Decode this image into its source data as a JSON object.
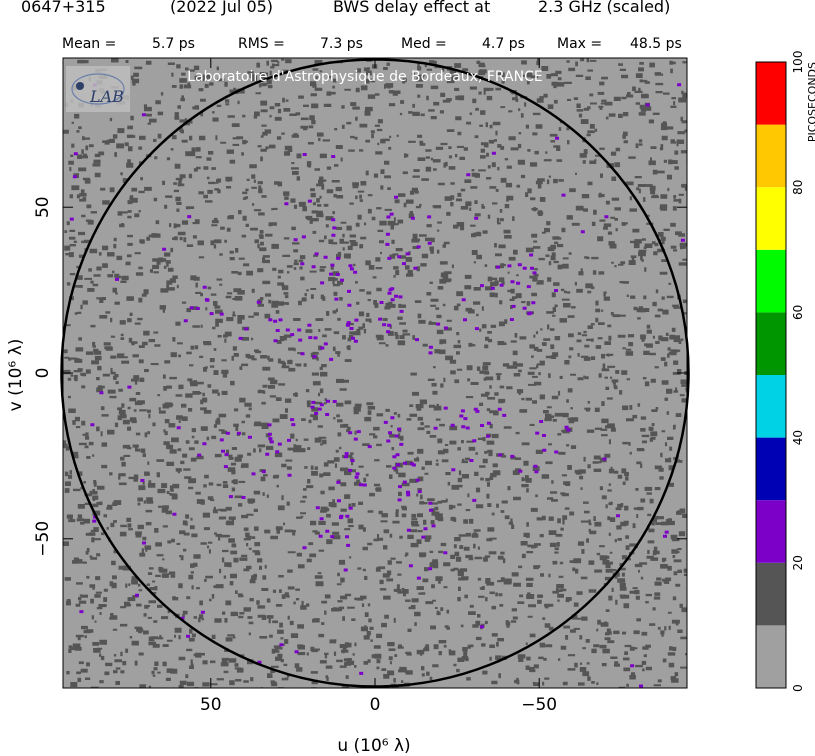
{
  "title": {
    "source": "0647+315",
    "date": "(2022 Jul 05)",
    "text": "BWS delay effect at",
    "freq": "2.3 GHz (scaled)"
  },
  "stats": [
    {
      "label": "Mean =",
      "value": "5.7 ps"
    },
    {
      "label": "RMS =",
      "value": "7.3 ps"
    },
    {
      "label": "Med =",
      "value": "4.7 ps"
    },
    {
      "label": "Max =",
      "value": "48.5 ps"
    }
  ],
  "watermark": "Laboratoire d'Astrophysique de Bordeaux, FRANCE",
  "logo_text": "LAB",
  "chart_data": {
    "type": "heatmap",
    "xlabel": "u (10⁶ λ)",
    "ylabel": "v (10⁶ λ)",
    "xlim": [
      95,
      -95
    ],
    "ylim": [
      -95,
      95
    ],
    "x_ticks": [
      50,
      0,
      -50
    ],
    "y_ticks": [
      50,
      0,
      -50
    ],
    "x_tick_labels": [
      "50",
      "0",
      "−50"
    ],
    "y_tick_labels": [
      "50",
      "0",
      "−50"
    ],
    "circle_radius": 95,
    "colorbar": {
      "label": "PICOSECONDS",
      "min": 0,
      "max": 100,
      "ticks": [
        0,
        20,
        40,
        60,
        80,
        100
      ],
      "bins": [
        {
          "from": 0,
          "to": 10,
          "color": "#a0a0a0"
        },
        {
          "from": 10,
          "to": 20,
          "color": "#555555"
        },
        {
          "from": 20,
          "to": 30,
          "color": "#7d00c8"
        },
        {
          "from": 30,
          "to": 40,
          "color": "#0000b4"
        },
        {
          "from": 40,
          "to": 50,
          "color": "#00d2e6"
        },
        {
          "from": 50,
          "to": 60,
          "color": "#009600"
        },
        {
          "from": 60,
          "to": 70,
          "color": "#00fa00"
        },
        {
          "from": 70,
          "to": 80,
          "color": "#ffff00"
        },
        {
          "from": 80,
          "to": 90,
          "color": "#ffc800"
        },
        {
          "from": 90,
          "to": 100,
          "color": "#ff0000"
        }
      ]
    },
    "background_color": "#a0a0a0"
  }
}
